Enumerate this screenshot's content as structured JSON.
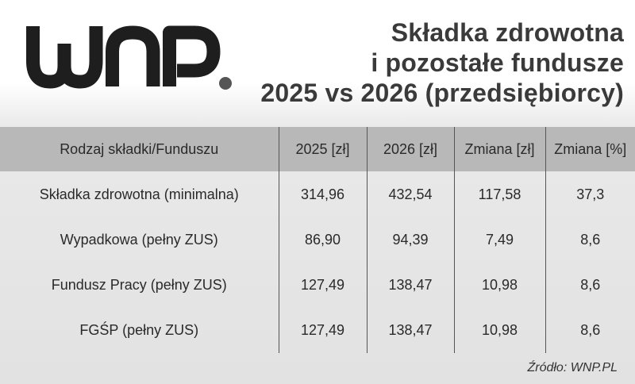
{
  "logo": {
    "text": "WNP."
  },
  "title": {
    "line1": "Składka zdrowotna",
    "line2": "i pozostałe fundusze",
    "line3": "2025 vs 2026 (przedsiębiorcy)"
  },
  "table": {
    "headers": [
      "Rodzaj składki/Funduszu",
      "2025 [zł]",
      "2026 [zł]",
      "Zmiana [zł]",
      "Zmiana [%]"
    ],
    "rows": [
      [
        "Składka zdrowotna (minimalna)",
        "314,96",
        "432,54",
        "117,58",
        "37,3"
      ],
      [
        "Wypadkowa (pełny ZUS)",
        "86,90",
        "94,39",
        "7,49",
        "8,6"
      ],
      [
        "Fundusz Pracy (pełny ZUS)",
        "127,49",
        "138,47",
        "10,98",
        "8,6"
      ],
      [
        "FGŚP (pełny ZUS)",
        "127,49",
        "138,47",
        "10,98",
        "8,6"
      ]
    ]
  },
  "source": "Źródło: WNP.PL",
  "colors": {
    "logo": "#1e1e1e",
    "header_bg": "#b8b8b8",
    "title": "#3a3a3a",
    "dot": "#555555"
  }
}
